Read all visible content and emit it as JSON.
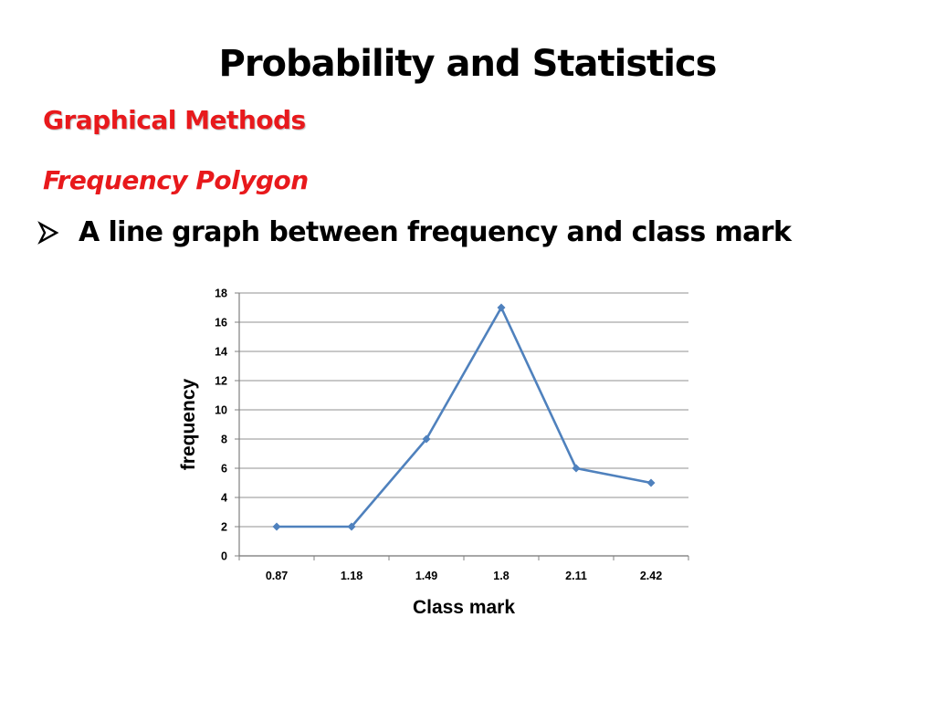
{
  "slide": {
    "title": "Probability and Statistics",
    "subtitle": "Graphical Methods",
    "section_heading": "Frequency Polygon",
    "bullet": {
      "icon": "arrow-bullet-icon",
      "text": "A line graph between frequency and class mark"
    }
  },
  "colors": {
    "accent_red": "#e8191c",
    "series_line": "#4f81bd",
    "gridline": "#a6a6a6"
  },
  "chart_data": {
    "type": "line",
    "title": "",
    "xlabel": "Class mark",
    "ylabel": "frequency",
    "categories": [
      "0.87",
      "1.18",
      "1.49",
      "1.8",
      "2.11",
      "2.42"
    ],
    "series": [
      {
        "values": [
          2,
          2,
          8,
          17,
          6,
          5
        ],
        "color": "#4f81bd",
        "marker": "diamond"
      }
    ],
    "ylim": [
      0,
      18
    ],
    "yticks": [
      0,
      2,
      4,
      6,
      8,
      10,
      12,
      14,
      16,
      18
    ],
    "grid": "horizontal",
    "legend": "none"
  }
}
